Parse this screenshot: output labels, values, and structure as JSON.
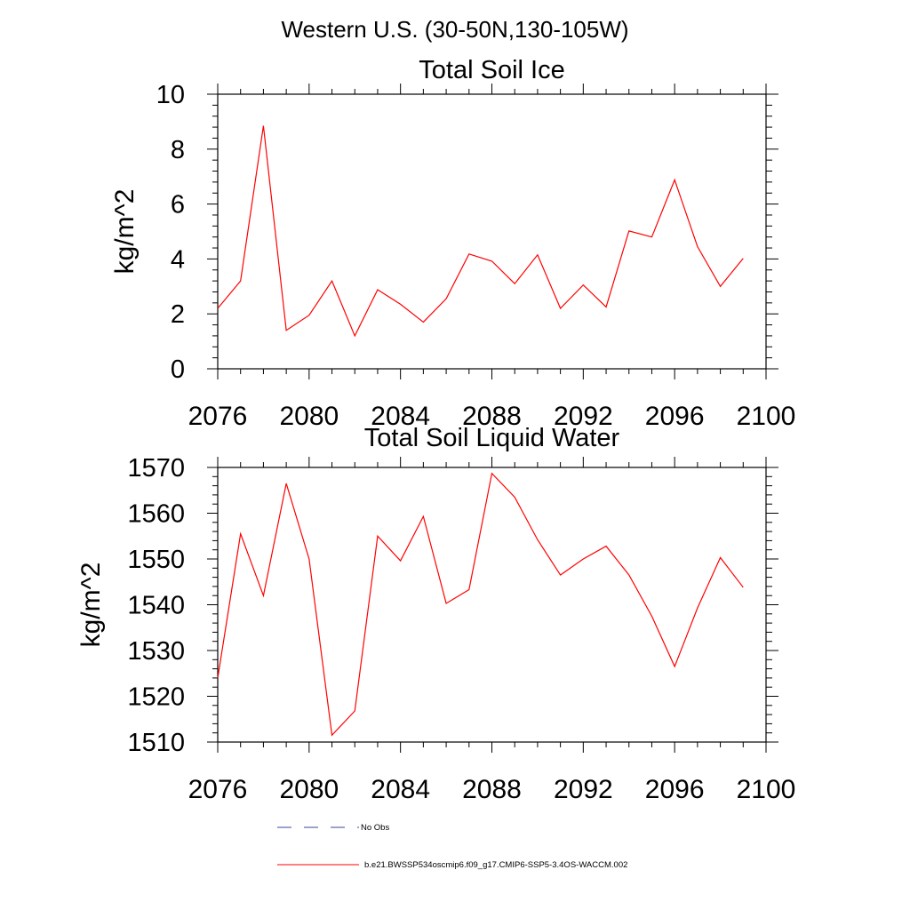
{
  "figure_title": "Western U.S. (30-50N,130-105W)",
  "chart_data": [
    {
      "type": "line",
      "title": "Total Soil Ice",
      "xlabel": "",
      "ylabel": "kg/m^2",
      "xlim": [
        2076,
        2100
      ],
      "ylim": [
        0,
        10
      ],
      "xticks": [
        2076,
        2080,
        2084,
        2088,
        2092,
        2096,
        2100
      ],
      "yticks": [
        0,
        2,
        4,
        6,
        8,
        10
      ],
      "x": [
        2076,
        2077,
        2078,
        2079,
        2080,
        2081,
        2082,
        2083,
        2084,
        2085,
        2086,
        2087,
        2088,
        2089,
        2090,
        2091,
        2092,
        2093,
        2094,
        2095,
        2096,
        2097,
        2098,
        2099
      ],
      "series": [
        {
          "name": "b.e21.BWSSP534oscmip6.f09_g17.CMIP6-SSP5-3.4OS-WACCM.002",
          "color": "#ff0000",
          "values": [
            2.2,
            3.2,
            8.85,
            1.4,
            1.95,
            3.2,
            1.2,
            2.88,
            2.35,
            1.7,
            2.55,
            4.18,
            3.92,
            3.1,
            4.15,
            2.2,
            3.05,
            2.25,
            5.02,
            4.8,
            6.88,
            4.45,
            3.0,
            4.02
          ]
        }
      ]
    },
    {
      "type": "line",
      "title": "Total Soil Liquid Water",
      "xlabel": "",
      "ylabel": "kg/m^2",
      "xlim": [
        2076,
        2100
      ],
      "ylim": [
        1510,
        1570
      ],
      "xticks": [
        2076,
        2080,
        2084,
        2088,
        2092,
        2096,
        2100
      ],
      "yticks": [
        1510,
        1520,
        1530,
        1540,
        1550,
        1560,
        1570
      ],
      "x": [
        2076,
        2077,
        2078,
        2079,
        2080,
        2081,
        2082,
        2083,
        2084,
        2085,
        2086,
        2087,
        2088,
        2089,
        2090,
        2091,
        2092,
        2093,
        2094,
        2095,
        2096,
        2097,
        2098,
        2099
      ],
      "series": [
        {
          "name": "b.e21.BWSSP534oscmip6.f09_g17.CMIP6-SSP5-3.4OS-WACCM.002",
          "color": "#ff0000",
          "values": [
            1524,
            1555.5,
            1542,
            1566.5,
            1550,
            1511.5,
            1516.8,
            1555,
            1549.6,
            1559.3,
            1540.3,
            1543.3,
            1568.7,
            1563.5,
            1554.2,
            1546.5,
            1550,
            1552.8,
            1546.5,
            1537.5,
            1526.5,
            1539.3,
            1550.3,
            1543.8
          ]
        }
      ]
    }
  ],
  "legend": {
    "items": [
      {
        "label": "No Obs",
        "color": "#3a4a9a",
        "style": "dashed"
      },
      {
        "label": "b.e21.BWSSP534oscmip6.f09_g17.CMIP6-SSP5-3.4OS-WACCM.002",
        "color": "#ff0000",
        "style": "solid"
      }
    ]
  }
}
